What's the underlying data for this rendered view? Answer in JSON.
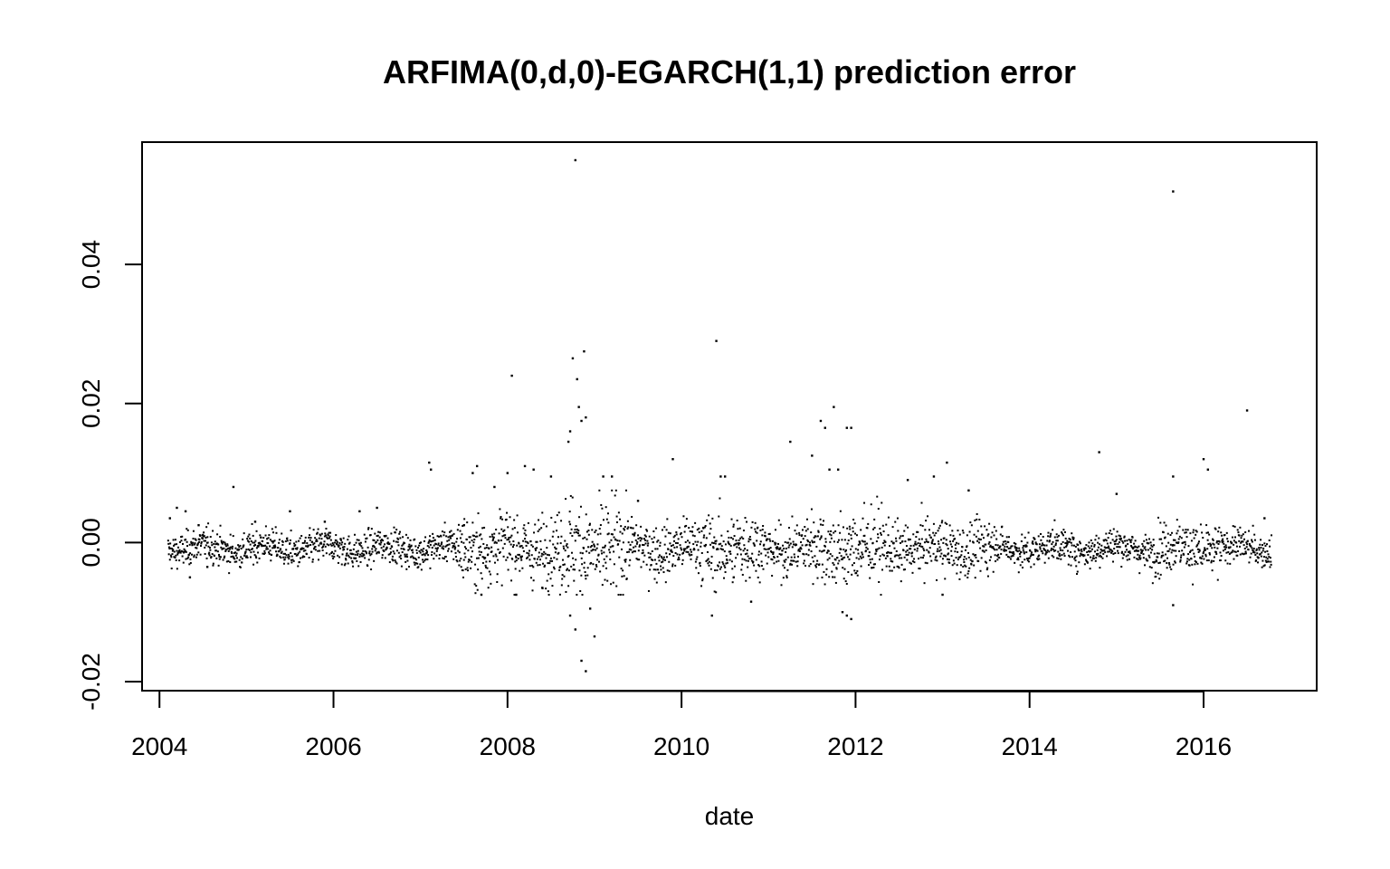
{
  "chart_data": {
    "type": "scatter",
    "title": "ARFIMA(0,d,0)-EGARCH(1,1) prediction error",
    "xlabel": "date",
    "ylabel": "",
    "xlim": [
      2003.8,
      2017.3
    ],
    "ylim": [
      -0.0213,
      0.0576
    ],
    "x_ticks": [
      2004,
      2006,
      2008,
      2010,
      2012,
      2014,
      2016
    ],
    "x_tick_labels": [
      "2004",
      "2006",
      "2008",
      "2010",
      "2012",
      "2014",
      "2016"
    ],
    "y_ticks": [
      -0.02,
      0.0,
      0.02,
      0.04
    ],
    "y_tick_labels": [
      "-0.02",
      "0.00",
      "0.02",
      "0.04"
    ],
    "grid": false,
    "legend": "none",
    "marker_color": "#000000",
    "series": [
      {
        "points": [
          [
            2004.12,
            0.0035
          ],
          [
            2004.2,
            0.005
          ],
          [
            2004.3,
            0.0045
          ],
          [
            2004.35,
            -0.005
          ],
          [
            2004.45,
            0.0025
          ],
          [
            2004.55,
            -0.0035
          ],
          [
            2004.85,
            0.008
          ],
          [
            2005.1,
            0.003
          ],
          [
            2005.5,
            0.0045
          ],
          [
            2005.9,
            0.003
          ],
          [
            2006.3,
            0.0045
          ],
          [
            2006.5,
            0.005
          ],
          [
            2007.1,
            0.0115
          ],
          [
            2007.12,
            0.0105
          ],
          [
            2007.5,
            0.0025
          ],
          [
            2007.6,
            0.01
          ],
          [
            2007.65,
            0.011
          ],
          [
            2007.7,
            -0.0075
          ],
          [
            2007.85,
            0.008
          ],
          [
            2008.0,
            0.01
          ],
          [
            2008.05,
            0.024
          ],
          [
            2008.1,
            -0.0075
          ],
          [
            2008.2,
            0.011
          ],
          [
            2008.3,
            0.0105
          ],
          [
            2008.4,
            -0.0065
          ],
          [
            2008.5,
            0.0095
          ],
          [
            2008.7,
            0.0145
          ],
          [
            2008.72,
            0.016
          ],
          [
            2008.75,
            0.0265
          ],
          [
            2008.78,
            0.055
          ],
          [
            2008.8,
            0.0235
          ],
          [
            2008.82,
            0.0195
          ],
          [
            2008.85,
            0.0175
          ],
          [
            2008.88,
            0.0275
          ],
          [
            2008.9,
            0.018
          ],
          [
            2008.72,
            -0.0105
          ],
          [
            2008.78,
            -0.0125
          ],
          [
            2008.85,
            -0.017
          ],
          [
            2008.9,
            -0.0185
          ],
          [
            2008.95,
            -0.0095
          ],
          [
            2009.0,
            -0.0135
          ],
          [
            2009.1,
            0.0095
          ],
          [
            2009.2,
            0.0095
          ],
          [
            2009.5,
            0.006
          ],
          [
            2009.9,
            0.012
          ],
          [
            2010.4,
            0.029
          ],
          [
            2010.35,
            -0.0105
          ],
          [
            2010.45,
            0.0095
          ],
          [
            2010.5,
            0.0095
          ],
          [
            2010.6,
            -0.005
          ],
          [
            2010.8,
            -0.0085
          ],
          [
            2011.25,
            0.0145
          ],
          [
            2011.5,
            0.0125
          ],
          [
            2011.6,
            0.0175
          ],
          [
            2011.65,
            0.0165
          ],
          [
            2011.7,
            0.0105
          ],
          [
            2011.75,
            0.0195
          ],
          [
            2011.8,
            0.0105
          ],
          [
            2011.9,
            0.0165
          ],
          [
            2011.95,
            0.0165
          ],
          [
            2011.9,
            -0.0105
          ],
          [
            2011.95,
            -0.011
          ],
          [
            2011.85,
            -0.01
          ],
          [
            2012.6,
            0.009
          ],
          [
            2012.9,
            0.0095
          ],
          [
            2013.05,
            0.0115
          ],
          [
            2013.0,
            -0.0075
          ],
          [
            2013.3,
            0.0075
          ],
          [
            2014.8,
            0.013
          ],
          [
            2015.0,
            0.007
          ],
          [
            2015.65,
            0.0505
          ],
          [
            2015.65,
            0.0095
          ],
          [
            2015.65,
            -0.009
          ],
          [
            2016.0,
            0.012
          ],
          [
            2016.05,
            0.0105
          ],
          [
            2016.5,
            0.019
          ],
          [
            2016.7,
            0.0035
          ]
        ]
      }
    ]
  }
}
